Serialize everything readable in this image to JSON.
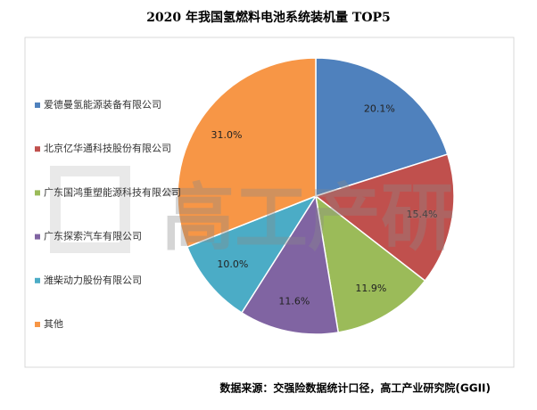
{
  "chart_data": {
    "type": "pie",
    "title": "2020 年我国氢燃料电池系统装机量 TOP5",
    "categories": [
      "爱德曼氢能源装备有限公司",
      "北京亿华通科技股份有限公司",
      "广东国鸿重塑能源科技有限公司",
      "广东探索汽车有限公司",
      "潍柴动力股份有限公司",
      "其他"
    ],
    "values": [
      20.1,
      15.4,
      11.9,
      11.6,
      10.0,
      31.0
    ],
    "value_labels": [
      "20.1%",
      "15.4%",
      "11.9%",
      "11.6%",
      "10.0%",
      "31.0%"
    ],
    "colors": [
      "#4f81bd",
      "#c0504d",
      "#9bbb59",
      "#8064a2",
      "#4bacc6",
      "#f79646"
    ],
    "legend": "left",
    "watermark": "高工产研",
    "source": "数据来源：交强险数据统计口径，高工产业研究院(GGII)"
  }
}
